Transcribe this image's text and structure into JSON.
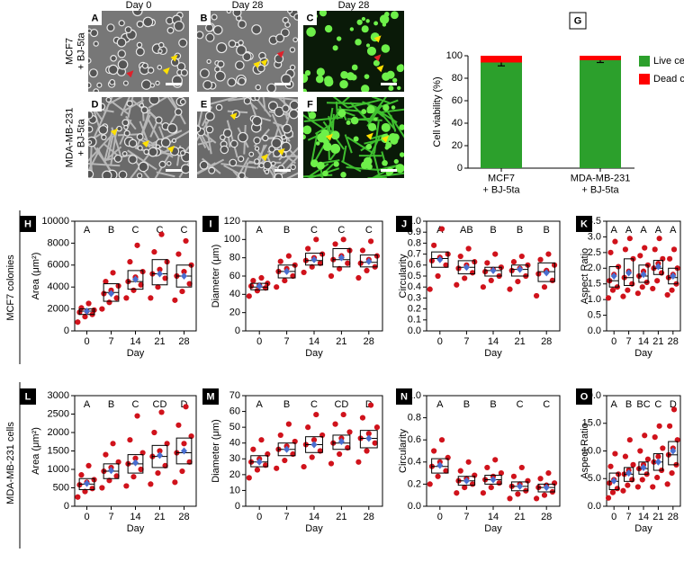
{
  "panels": {
    "column_headers": [
      "Day 0",
      "Day 28",
      "Day 28"
    ],
    "row_labels": [
      "MCF7\n+ BJ-5ta",
      "MDA-MB-231\n+ BJ-5ta"
    ],
    "images": [
      "A",
      "B",
      "C",
      "D",
      "E",
      "F"
    ]
  },
  "row_labels": [
    "MCF7 colonies",
    "MDA-MB-231 cells"
  ],
  "chart_data": [
    {
      "type": "stacked_bar",
      "label": "G",
      "ylabel": "Cell viability (%)",
      "categories": [
        "MCF7\n+ BJ-5ta",
        "MDA-MB-231\n+ BJ-5ta"
      ],
      "series": [
        {
          "name": "Live cells",
          "color": "#2ca02c",
          "values": [
            94,
            96
          ],
          "errors": [
            3,
            2
          ]
        },
        {
          "name": "Dead cells",
          "color": "#ff0000",
          "values": [
            6,
            4
          ]
        }
      ],
      "ylim": [
        0,
        100
      ],
      "yticks": [
        0,
        20,
        40,
        60,
        80,
        100
      ],
      "legend": "right"
    },
    {
      "type": "box",
      "label": "H",
      "ylabel": "Area (μm²)",
      "xlabel": "Day",
      "categories": [
        "0",
        "7",
        "14",
        "21",
        "28"
      ],
      "group_letters": [
        "A",
        "B",
        "C",
        "C",
        "C"
      ],
      "ylim": [
        0,
        10000
      ],
      "yticks": [
        0,
        2000,
        4000,
        6000,
        8000,
        10000
      ],
      "point_color": "#d0121b",
      "mean_color": "#4a6fd0",
      "groups": [
        {
          "q1": 1500,
          "median": 1800,
          "q3": 2000,
          "mean": 1800,
          "points": [
            800,
            1300,
            1500,
            1700,
            1800,
            1900,
            2100,
            2500
          ]
        },
        {
          "q1": 2700,
          "median": 3500,
          "q3": 4300,
          "mean": 3400,
          "points": [
            2000,
            2600,
            3000,
            3400,
            3700,
            4100,
            4500,
            5300
          ]
        },
        {
          "q1": 3800,
          "median": 4500,
          "q3": 5500,
          "mean": 4700,
          "points": [
            3000,
            3700,
            4200,
            4500,
            4900,
            5400,
            6300,
            7800
          ]
        },
        {
          "q1": 4200,
          "median": 5200,
          "q3": 6500,
          "mean": 5200,
          "points": [
            3000,
            4000,
            4800,
            5200,
            5600,
            6300,
            7200,
            8800
          ]
        },
        {
          "q1": 4000,
          "median": 5000,
          "q3": 6000,
          "mean": 5000,
          "points": [
            2800,
            3600,
            4300,
            5000,
            5400,
            6000,
            7000,
            8200
          ]
        }
      ]
    },
    {
      "type": "box",
      "label": "I",
      "ylabel": "Diameter (μm)",
      "xlabel": "Day",
      "categories": [
        "0",
        "7",
        "14",
        "21",
        "28"
      ],
      "group_letters": [
        "A",
        "B",
        "C",
        "C",
        "C"
      ],
      "ylim": [
        0,
        120
      ],
      "yticks": [
        0,
        20,
        40,
        60,
        80,
        100,
        120
      ],
      "point_color": "#d0121b",
      "mean_color": "#4a6fd0",
      "groups": [
        {
          "q1": 45,
          "median": 48,
          "q3": 52,
          "mean": 49,
          "points": [
            38,
            44,
            47,
            49,
            50,
            52,
            55,
            58
          ]
        },
        {
          "q1": 58,
          "median": 65,
          "q3": 72,
          "mean": 65,
          "points": [
            48,
            55,
            60,
            65,
            68,
            72,
            76,
            82
          ]
        },
        {
          "q1": 72,
          "median": 77,
          "q3": 85,
          "mean": 78,
          "points": [
            64,
            70,
            74,
            77,
            80,
            84,
            90,
            100
          ]
        },
        {
          "q1": 70,
          "median": 78,
          "q3": 90,
          "mean": 80,
          "points": [
            60,
            68,
            74,
            78,
            82,
            88,
            95,
            100
          ]
        },
        {
          "q1": 70,
          "median": 75,
          "q3": 83,
          "mean": 76,
          "points": [
            58,
            66,
            70,
            74,
            78,
            82,
            88,
            98
          ]
        }
      ]
    },
    {
      "type": "box",
      "label": "J",
      "ylabel": "Circularity",
      "xlabel": "Day",
      "categories": [
        "0",
        "7",
        "14",
        "21",
        "28"
      ],
      "group_letters": [
        "A",
        "AB",
        "B",
        "B",
        "B"
      ],
      "ylim": [
        0,
        1
      ],
      "yticks": [
        {
          "value": 0,
          "label": "0.0"
        },
        0.1,
        0.2,
        0.3,
        0.4,
        0.5,
        0.6,
        0.7,
        0.8,
        0.9,
        {
          "value": 1,
          "label": "1.0"
        }
      ],
      "point_color": "#d0121b",
      "mean_color": "#4a6fd0",
      "groups": [
        {
          "q1": 0.58,
          "median": 0.66,
          "q3": 0.72,
          "mean": 0.65,
          "points": [
            0.38,
            0.5,
            0.6,
            0.64,
            0.67,
            0.7,
            0.78,
            0.93
          ]
        },
        {
          "q1": 0.52,
          "median": 0.58,
          "q3": 0.64,
          "mean": 0.58,
          "points": [
            0.42,
            0.48,
            0.53,
            0.57,
            0.6,
            0.63,
            0.68,
            0.75
          ]
        },
        {
          "q1": 0.5,
          "median": 0.55,
          "q3": 0.58,
          "mean": 0.55,
          "points": [
            0.4,
            0.46,
            0.5,
            0.54,
            0.56,
            0.58,
            0.62,
            0.7
          ]
        },
        {
          "q1": 0.5,
          "median": 0.56,
          "q3": 0.6,
          "mean": 0.56,
          "points": [
            0.38,
            0.45,
            0.5,
            0.55,
            0.57,
            0.6,
            0.63,
            0.68
          ]
        },
        {
          "q1": 0.45,
          "median": 0.54,
          "q3": 0.62,
          "mean": 0.53,
          "points": [
            0.32,
            0.4,
            0.46,
            0.52,
            0.55,
            0.6,
            0.65,
            0.7
          ]
        }
      ]
    },
    {
      "type": "box",
      "label": "K",
      "ylabel": "Aspect Ratio",
      "xlabel": "Day",
      "categories": [
        "0",
        "7",
        "14",
        "21",
        "28"
      ],
      "group_letters": [
        "A",
        "A",
        "A",
        "A",
        "A"
      ],
      "ylim": [
        0,
        3.5
      ],
      "yticks": [
        {
          "value": 0,
          "label": "0.0"
        },
        0.5,
        {
          "value": 1,
          "label": "1.0"
        },
        1.5,
        {
          "value": 2,
          "label": "2.0"
        },
        2.5,
        {
          "value": 3,
          "label": "3.0"
        },
        3.5
      ],
      "point_color": "#d0121b",
      "mean_color": "#4a6fd0",
      "groups": [
        {
          "q1": 1.4,
          "median": 1.6,
          "q3": 2.05,
          "mean": 1.75,
          "points": [
            1.05,
            1.3,
            1.4,
            1.6,
            1.8,
            2.05,
            2.5,
            2.85
          ]
        },
        {
          "q1": 1.45,
          "median": 1.7,
          "q3": 2.3,
          "mean": 1.85,
          "points": [
            1.1,
            1.3,
            1.5,
            1.7,
            1.9,
            2.3,
            2.6,
            2.95
          ]
        },
        {
          "q1": 1.55,
          "median": 1.75,
          "q3": 2.1,
          "mean": 1.8,
          "points": [
            1.2,
            1.4,
            1.55,
            1.75,
            1.9,
            2.1,
            2.4,
            2.65
          ]
        },
        {
          "q1": 1.8,
          "median": 2.0,
          "q3": 2.25,
          "mean": 2.05,
          "points": [
            1.35,
            1.6,
            1.85,
            2.0,
            2.15,
            2.3,
            2.6,
            2.95
          ]
        },
        {
          "q1": 1.5,
          "median": 1.7,
          "q3": 2.0,
          "mean": 1.75,
          "points": [
            1.15,
            1.3,
            1.5,
            1.7,
            1.8,
            2.0,
            2.3,
            2.6
          ]
        }
      ]
    },
    {
      "type": "box",
      "label": "L",
      "ylabel": "Area (μm²)",
      "xlabel": "Day",
      "categories": [
        "0",
        "7",
        "14",
        "21",
        "28"
      ],
      "group_letters": [
        "A",
        "B",
        "C",
        "CD",
        "D"
      ],
      "ylim": [
        0,
        3000
      ],
      "yticks": [
        0,
        500,
        1000,
        1500,
        2000,
        2500,
        3000
      ],
      "point_color": "#d0121b",
      "mean_color": "#4a6fd0",
      "groups": [
        {
          "q1": 450,
          "median": 600,
          "q3": 750,
          "mean": 620,
          "points": [
            250,
            400,
            480,
            580,
            650,
            720,
            850,
            1100
          ]
        },
        {
          "q1": 750,
          "median": 950,
          "q3": 1150,
          "mean": 970,
          "points": [
            500,
            700,
            820,
            950,
            1050,
            1200,
            1400,
            1700
          ]
        },
        {
          "q1": 900,
          "median": 1150,
          "q3": 1400,
          "mean": 1180,
          "points": [
            550,
            800,
            1000,
            1150,
            1300,
            1450,
            1800,
            2450
          ]
        },
        {
          "q1": 1050,
          "median": 1350,
          "q3": 1650,
          "mean": 1380,
          "points": [
            600,
            900,
            1100,
            1350,
            1500,
            1700,
            2000,
            2550
          ]
        },
        {
          "q1": 1150,
          "median": 1450,
          "q3": 1850,
          "mean": 1500,
          "points": [
            650,
            950,
            1200,
            1450,
            1700,
            1900,
            2200,
            2700
          ]
        }
      ]
    },
    {
      "type": "box",
      "label": "M",
      "ylabel": "Diameter (μm)",
      "xlabel": "Day",
      "categories": [
        "0",
        "7",
        "14",
        "21",
        "28"
      ],
      "group_letters": [
        "A",
        "B",
        "C",
        "CD",
        "D"
      ],
      "ylim": [
        0,
        70
      ],
      "yticks": [
        0,
        10,
        20,
        30,
        40,
        50,
        60,
        70
      ],
      "point_color": "#d0121b",
      "mean_color": "#4a6fd0",
      "groups": [
        {
          "q1": 25,
          "median": 28,
          "q3": 32,
          "mean": 28,
          "points": [
            18,
            23,
            26,
            28,
            30,
            33,
            36,
            42
          ]
        },
        {
          "q1": 32,
          "median": 36,
          "q3": 40,
          "mean": 36,
          "points": [
            24,
            29,
            33,
            36,
            38,
            41,
            45,
            52
          ]
        },
        {
          "q1": 34,
          "median": 39,
          "q3": 44,
          "mean": 39,
          "points": [
            25,
            31,
            35,
            39,
            42,
            45,
            50,
            58
          ]
        },
        {
          "q1": 36,
          "median": 40,
          "q3": 45,
          "mean": 41,
          "points": [
            27,
            33,
            37,
            40,
            43,
            47,
            52,
            58
          ]
        },
        {
          "q1": 37,
          "median": 43,
          "q3": 48,
          "mean": 43,
          "points": [
            28,
            35,
            40,
            43,
            46,
            50,
            56,
            64
          ]
        }
      ]
    },
    {
      "type": "box",
      "label": "N",
      "ylabel": "Circularity",
      "xlabel": "Day",
      "categories": [
        "0",
        "7",
        "14",
        "21",
        "28"
      ],
      "group_letters": [
        "A",
        "B",
        "B",
        "C",
        "C"
      ],
      "ylim": [
        0,
        1
      ],
      "yticks": [
        {
          "value": 0,
          "label": "0.0"
        },
        0.2,
        0.4,
        0.6,
        0.8,
        {
          "value": 1,
          "label": "1.0"
        }
      ],
      "point_color": "#d0121b",
      "mean_color": "#4a6fd0",
      "groups": [
        {
          "q1": 0.3,
          "median": 0.36,
          "q3": 0.43,
          "mean": 0.37,
          "points": [
            0.2,
            0.27,
            0.32,
            0.36,
            0.4,
            0.44,
            0.5,
            0.6
          ]
        },
        {
          "q1": 0.19,
          "median": 0.23,
          "q3": 0.27,
          "mean": 0.23,
          "points": [
            0.12,
            0.17,
            0.2,
            0.23,
            0.25,
            0.28,
            0.32,
            0.4
          ]
        },
        {
          "q1": 0.2,
          "median": 0.24,
          "q3": 0.28,
          "mean": 0.24,
          "points": [
            0.12,
            0.17,
            0.21,
            0.24,
            0.27,
            0.3,
            0.35,
            0.42
          ]
        },
        {
          "q1": 0.14,
          "median": 0.18,
          "q3": 0.22,
          "mean": 0.18,
          "points": [
            0.07,
            0.11,
            0.14,
            0.18,
            0.2,
            0.23,
            0.27,
            0.35
          ]
        },
        {
          "q1": 0.13,
          "median": 0.17,
          "q3": 0.2,
          "mean": 0.17,
          "points": [
            0.07,
            0.1,
            0.13,
            0.17,
            0.19,
            0.21,
            0.25,
            0.3
          ]
        }
      ]
    },
    {
      "type": "box",
      "label": "O",
      "ylabel": "Aspect Ratio",
      "xlabel": "Day",
      "categories": [
        "0",
        "7",
        "14",
        "21",
        "28"
      ],
      "group_letters": [
        "A",
        "B",
        "BC",
        "C",
        "D"
      ],
      "ylim": [
        0,
        20
      ],
      "yticks": [
        {
          "value": 0,
          "label": "0.0"
        },
        {
          "value": 5,
          "label": "5.0"
        },
        {
          "value": 10,
          "label": "10.0"
        },
        {
          "value": 15,
          "label": "15.0"
        },
        {
          "value": 20,
          "label": "20.0"
        }
      ],
      "point_color": "#d0121b",
      "mean_color": "#4a6fd0",
      "groups": [
        {
          "q1": 3,
          "median": 4.5,
          "q3": 6,
          "mean": 4.6,
          "points": [
            1.5,
            2.5,
            3.2,
            4.2,
            4.8,
            5.8,
            7.2,
            9.5
          ]
        },
        {
          "q1": 4.5,
          "median": 5.8,
          "q3": 7,
          "mean": 6,
          "points": [
            2.8,
            3.8,
            4.8,
            5.8,
            6.5,
            7.5,
            9,
            12
          ]
        },
        {
          "q1": 5.8,
          "median": 6.8,
          "q3": 8,
          "mean": 7,
          "points": [
            3.5,
            4.8,
            5.8,
            6.8,
            7.5,
            8.5,
            10,
            12.8
          ]
        },
        {
          "q1": 6.5,
          "median": 8,
          "q3": 9.5,
          "mean": 8,
          "points": [
            3.5,
            5.2,
            6.5,
            8,
            9,
            10.5,
            12.5,
            14.5
          ]
        },
        {
          "q1": 7.5,
          "median": 9.3,
          "q3": 11.7,
          "mean": 10,
          "points": [
            4,
            6,
            7.5,
            9.3,
            10.5,
            12,
            14.5,
            17.5
          ]
        }
      ]
    }
  ]
}
